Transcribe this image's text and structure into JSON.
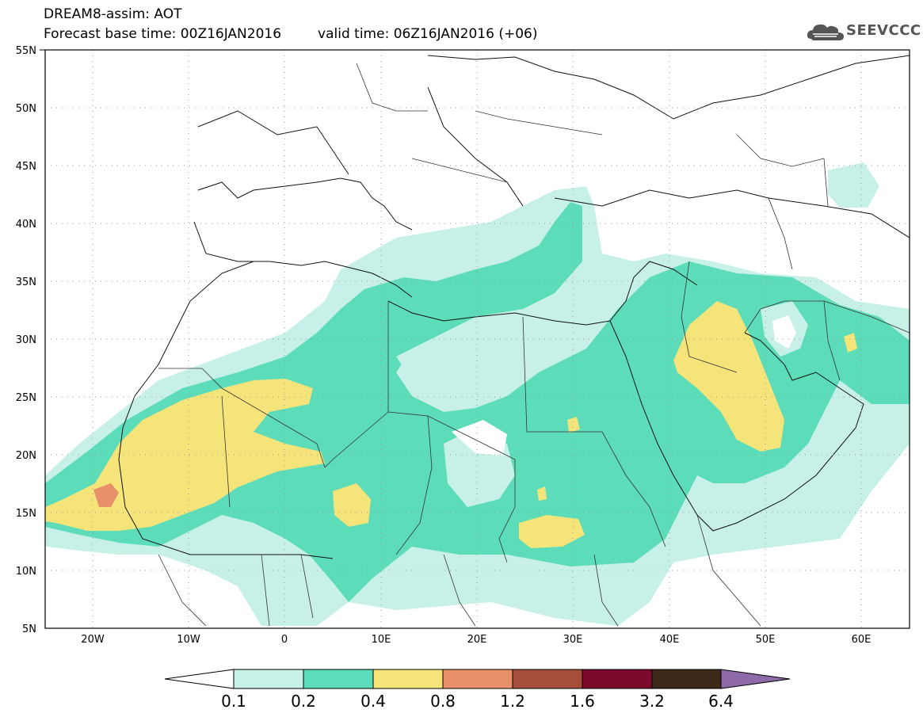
{
  "header": {
    "model_line": "DREAM8-assim: AOT",
    "base_time": "Forecast base time: 00Z16JAN2016",
    "valid_time": "valid time: 06Z16JAN2016 (+06)"
  },
  "logo": {
    "text": "SEEVCCC",
    "icon": "cloud-icon"
  },
  "map": {
    "lon_range": [
      -25,
      65
    ],
    "lat_range": [
      5,
      55
    ],
    "lat_labels": [
      "55N",
      "50N",
      "45N",
      "40N",
      "35N",
      "30N",
      "25N",
      "20N",
      "15N",
      "10N",
      "5N"
    ],
    "lon_labels": [
      "20W",
      "10W",
      "0",
      "10E",
      "20E",
      "30E",
      "40E",
      "50E",
      "60E"
    ],
    "gridlines": "dotted"
  },
  "colorbar": {
    "levels": [
      "0.1",
      "0.2",
      "0.4",
      "0.8",
      "1.2",
      "1.6",
      "3.2",
      "6.4"
    ],
    "colors": [
      "#ffffff",
      "#c7f0e8",
      "#5ddcb9",
      "#f5e47a",
      "#e8906a",
      "#a64e3c",
      "#7c0a2a",
      "#3d2a1a",
      "#8e6aa8"
    ]
  }
}
